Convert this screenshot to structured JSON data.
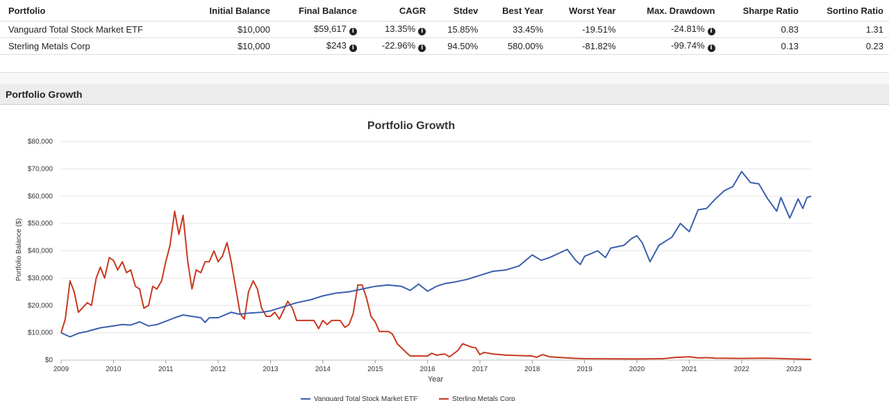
{
  "table": {
    "headers": [
      "Portfolio",
      "Initial Balance",
      "Final Balance",
      "CAGR",
      "Stdev",
      "Best Year",
      "Worst Year",
      "Max. Drawdown",
      "Sharpe Ratio",
      "Sortino Ratio"
    ],
    "rows": [
      {
        "portfolio": "Vanguard Total Stock Market ETF",
        "initial": "$10,000",
        "final": "$59,617",
        "cagr": "13.35%",
        "stdev": "15.85%",
        "best": "33.45%",
        "worst": "-19.51%",
        "drawdown": "-24.81%",
        "sharpe": "0.83",
        "sortino": "1.31"
      },
      {
        "portfolio": "Sterling Metals Corp",
        "initial": "$10,000",
        "final": "$243",
        "cagr": "-22.96%",
        "stdev": "94.50%",
        "best": "580.00%",
        "worst": "-81.82%",
        "drawdown": "-99.74%",
        "sharpe": "0.13",
        "sortino": "0.23"
      }
    ],
    "info_glyph": "i"
  },
  "section": {
    "title": "Portfolio Growth"
  },
  "colors": {
    "series1": "#3a5fad",
    "series2": "#c8381e",
    "grid": "#e4e4e4"
  },
  "chart_data": {
    "type": "line",
    "title": "Portfolio Growth",
    "xlabel": "Year",
    "ylabel": "Portfolio Balance ($)",
    "xlim": [
      2009,
      2023.33
    ],
    "ylim": [
      0,
      80000
    ],
    "x_ticks": [
      2009,
      2010,
      2011,
      2012,
      2013,
      2014,
      2015,
      2016,
      2017,
      2018,
      2019,
      2020,
      2021,
      2022,
      2023
    ],
    "y_ticks": [
      0,
      10000,
      20000,
      30000,
      40000,
      50000,
      60000,
      70000,
      80000
    ],
    "y_tick_labels": [
      "$0",
      "$10,000",
      "$20,000",
      "$30,000",
      "$40,000",
      "$50,000",
      "$60,000",
      "$70,000",
      "$80,000"
    ],
    "legend_position": "bottom",
    "series": [
      {
        "name": "Vanguard Total Stock Market ETF",
        "points": [
          [
            2009.0,
            10000
          ],
          [
            2009.17,
            8500
          ],
          [
            2009.33,
            9800
          ],
          [
            2009.5,
            10500
          ],
          [
            2009.75,
            11800
          ],
          [
            2010.0,
            12500
          ],
          [
            2010.17,
            13000
          ],
          [
            2010.33,
            12800
          ],
          [
            2010.5,
            14000
          ],
          [
            2010.67,
            12500
          ],
          [
            2010.83,
            13000
          ],
          [
            2011.0,
            14200
          ],
          [
            2011.17,
            15500
          ],
          [
            2011.33,
            16500
          ],
          [
            2011.5,
            16000
          ],
          [
            2011.67,
            15500
          ],
          [
            2011.75,
            13800
          ],
          [
            2011.83,
            15500
          ],
          [
            2012.0,
            15500
          ],
          [
            2012.25,
            17500
          ],
          [
            2012.4,
            16800
          ],
          [
            2012.6,
            17200
          ],
          [
            2012.83,
            17500
          ],
          [
            2013.0,
            18000
          ],
          [
            2013.25,
            19500
          ],
          [
            2013.5,
            21000
          ],
          [
            2013.75,
            22000
          ],
          [
            2014.0,
            23500
          ],
          [
            2014.25,
            24500
          ],
          [
            2014.5,
            25000
          ],
          [
            2014.75,
            26000
          ],
          [
            2015.0,
            27000
          ],
          [
            2015.25,
            27500
          ],
          [
            2015.5,
            27000
          ],
          [
            2015.67,
            25500
          ],
          [
            2015.83,
            27800
          ],
          [
            2016.0,
            25200
          ],
          [
            2016.17,
            27000
          ],
          [
            2016.33,
            28000
          ],
          [
            2016.5,
            28500
          ],
          [
            2016.75,
            29500
          ],
          [
            2017.0,
            31000
          ],
          [
            2017.25,
            32500
          ],
          [
            2017.5,
            33000
          ],
          [
            2017.75,
            34500
          ],
          [
            2018.0,
            38500
          ],
          [
            2018.17,
            36500
          ],
          [
            2018.33,
            37500
          ],
          [
            2018.5,
            39000
          ],
          [
            2018.67,
            40500
          ],
          [
            2018.83,
            36500
          ],
          [
            2018.92,
            35000
          ],
          [
            2019.0,
            38000
          ],
          [
            2019.25,
            40000
          ],
          [
            2019.4,
            37500
          ],
          [
            2019.5,
            41000
          ],
          [
            2019.75,
            42000
          ],
          [
            2019.9,
            44500
          ],
          [
            2020.0,
            45500
          ],
          [
            2020.1,
            43000
          ],
          [
            2020.25,
            36000
          ],
          [
            2020.42,
            42000
          ],
          [
            2020.67,
            45000
          ],
          [
            2020.83,
            50000
          ],
          [
            2021.0,
            47000
          ],
          [
            2021.17,
            55000
          ],
          [
            2021.33,
            55500
          ],
          [
            2021.5,
            59000
          ],
          [
            2021.67,
            62000
          ],
          [
            2021.83,
            63500
          ],
          [
            2022.0,
            69000
          ],
          [
            2022.17,
            65000
          ],
          [
            2022.33,
            64500
          ],
          [
            2022.5,
            59000
          ],
          [
            2022.67,
            54500
          ],
          [
            2022.75,
            59500
          ],
          [
            2022.92,
            52000
          ],
          [
            2023.08,
            59000
          ],
          [
            2023.17,
            55500
          ],
          [
            2023.25,
            59500
          ],
          [
            2023.33,
            60000
          ]
        ]
      },
      {
        "name": "Sterling Metals Corp",
        "points": [
          [
            2009.0,
            10000
          ],
          [
            2009.08,
            15000
          ],
          [
            2009.17,
            29000
          ],
          [
            2009.25,
            25000
          ],
          [
            2009.33,
            17500
          ],
          [
            2009.5,
            21000
          ],
          [
            2009.58,
            20000
          ],
          [
            2009.67,
            30000
          ],
          [
            2009.75,
            34000
          ],
          [
            2009.83,
            30000
          ],
          [
            2009.92,
            37500
          ],
          [
            2010.0,
            36500
          ],
          [
            2010.08,
            33000
          ],
          [
            2010.17,
            36000
          ],
          [
            2010.25,
            32000
          ],
          [
            2010.33,
            33000
          ],
          [
            2010.42,
            27000
          ],
          [
            2010.5,
            26000
          ],
          [
            2010.58,
            19000
          ],
          [
            2010.67,
            20000
          ],
          [
            2010.75,
            27000
          ],
          [
            2010.83,
            26000
          ],
          [
            2010.92,
            29000
          ],
          [
            2011.0,
            36000
          ],
          [
            2011.08,
            42000
          ],
          [
            2011.17,
            54500
          ],
          [
            2011.25,
            46000
          ],
          [
            2011.33,
            53000
          ],
          [
            2011.42,
            36000
          ],
          [
            2011.5,
            26000
          ],
          [
            2011.58,
            33000
          ],
          [
            2011.67,
            32000
          ],
          [
            2011.75,
            36000
          ],
          [
            2011.83,
            36000
          ],
          [
            2011.92,
            40000
          ],
          [
            2012.0,
            36000
          ],
          [
            2012.08,
            38000
          ],
          [
            2012.17,
            43000
          ],
          [
            2012.25,
            36000
          ],
          [
            2012.33,
            27000
          ],
          [
            2012.42,
            17000
          ],
          [
            2012.5,
            15000
          ],
          [
            2012.58,
            25000
          ],
          [
            2012.67,
            29000
          ],
          [
            2012.75,
            26000
          ],
          [
            2012.83,
            19000
          ],
          [
            2012.92,
            16000
          ],
          [
            2013.0,
            16000
          ],
          [
            2013.08,
            17500
          ],
          [
            2013.17,
            15000
          ],
          [
            2013.33,
            21500
          ],
          [
            2013.42,
            19000
          ],
          [
            2013.5,
            14500
          ],
          [
            2013.67,
            14500
          ],
          [
            2013.83,
            14500
          ],
          [
            2013.92,
            11500
          ],
          [
            2014.0,
            14500
          ],
          [
            2014.08,
            13000
          ],
          [
            2014.17,
            14500
          ],
          [
            2014.33,
            14500
          ],
          [
            2014.42,
            12000
          ],
          [
            2014.5,
            13000
          ],
          [
            2014.58,
            17000
          ],
          [
            2014.67,
            27500
          ],
          [
            2014.75,
            27500
          ],
          [
            2014.83,
            23000
          ],
          [
            2014.92,
            16000
          ],
          [
            2015.0,
            14000
          ],
          [
            2015.08,
            10500
          ],
          [
            2015.25,
            10500
          ],
          [
            2015.33,
            9500
          ],
          [
            2015.42,
            6000
          ],
          [
            2015.58,
            3000
          ],
          [
            2015.67,
            1500
          ],
          [
            2016.0,
            1500
          ],
          [
            2016.08,
            2500
          ],
          [
            2016.17,
            1800
          ],
          [
            2016.33,
            2200
          ],
          [
            2016.42,
            1200
          ],
          [
            2016.58,
            3500
          ],
          [
            2016.67,
            6000
          ],
          [
            2016.83,
            4800
          ],
          [
            2016.92,
            4500
          ],
          [
            2017.0,
            2000
          ],
          [
            2017.08,
            2800
          ],
          [
            2017.25,
            2200
          ],
          [
            2017.5,
            1800
          ],
          [
            2018.0,
            1500
          ],
          [
            2018.08,
            1000
          ],
          [
            2018.2,
            2000
          ],
          [
            2018.33,
            1200
          ],
          [
            2018.75,
            700
          ],
          [
            2019.0,
            500
          ],
          [
            2020.0,
            400
          ],
          [
            2020.5,
            500
          ],
          [
            2020.75,
            1000
          ],
          [
            2021.0,
            1200
          ],
          [
            2021.17,
            800
          ],
          [
            2021.33,
            900
          ],
          [
            2021.5,
            700
          ],
          [
            2022.0,
            600
          ],
          [
            2022.5,
            700
          ],
          [
            2023.0,
            400
          ],
          [
            2023.33,
            243
          ]
        ]
      }
    ]
  }
}
